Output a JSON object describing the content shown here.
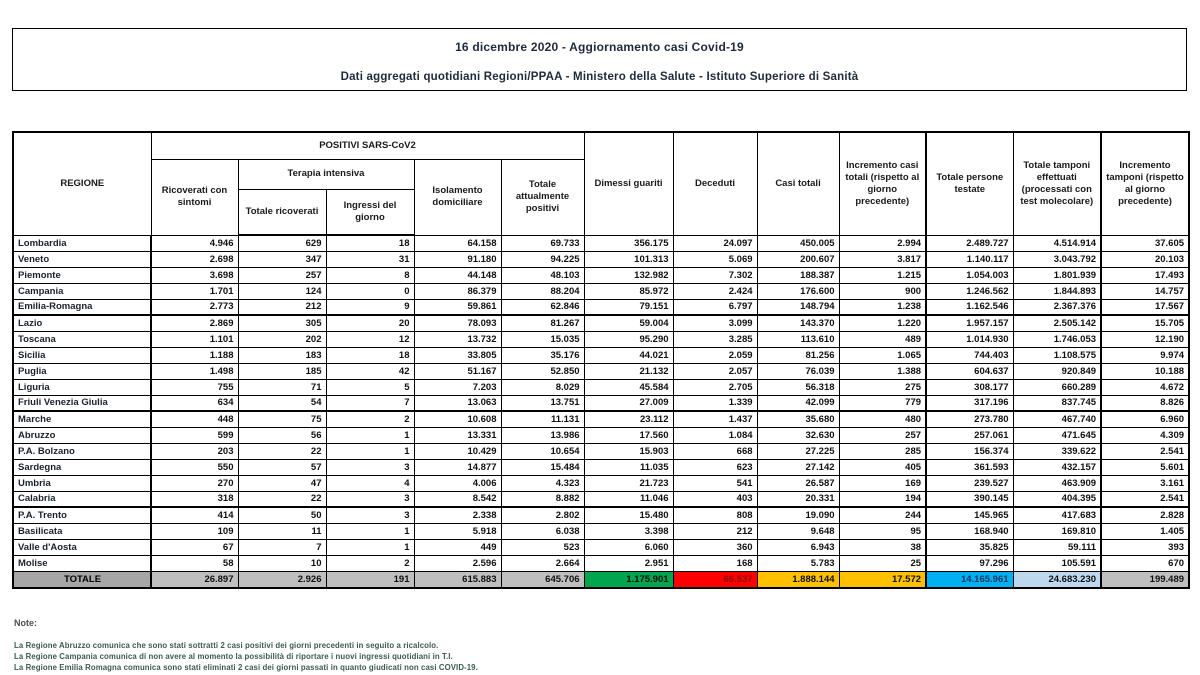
{
  "title": {
    "line1": "16 dicembre 2020 - Aggiornamento casi Covid-19",
    "line2": "Dati aggregati quotidiani Regioni/PPAA - Ministero della Salute - Istituto Superiore di Sanità"
  },
  "table": {
    "headers": {
      "regione": "REGIONE",
      "positivi": "POSITIVI SARS-CoV2",
      "terapia": "Terapia intensiva",
      "ricoverati": "Ricoverati con sintomi",
      "ti_totale": "Totale ricoverati",
      "ti_ingressi": "Ingressi del giorno",
      "isolamento": "Isolamento domiciliare",
      "attualmente": "Totale attualmente positivi",
      "dimessi": "Dimessi guariti",
      "deceduti": "Deceduti",
      "casi": "Casi totali",
      "incr_casi": "Incremento casi totali (rispetto al giorno precedente)",
      "testate": "Totale persone testate",
      "tamponi": "Totale tamponi effettuati (processati con test molecolare)",
      "incr_tamponi": "Incremento tamponi (rispetto al giorno precedente)"
    },
    "col_keys": [
      "ricoverati-con-sintomi",
      "ti-totale-ricoverati",
      "ti-ingressi-del-giorno",
      "isolamento-domiciliare",
      "totale-attualmente-positivi",
      "dimessi-guariti",
      "deceduti",
      "casi-totali",
      "incremento-casi-totali",
      "totale-persone-testate",
      "totale-tamponi-effettuati",
      "incremento-tamponi"
    ],
    "rows": [
      {
        "regione": "Lombardia",
        "values": [
          "4.946",
          "629",
          "18",
          "64.158",
          "69.733",
          "356.175",
          "24.097",
          "450.005",
          "2.994",
          "2.489.727",
          "4.514.914",
          "37.605"
        ]
      },
      {
        "regione": "Veneto",
        "values": [
          "2.698",
          "347",
          "31",
          "91.180",
          "94.225",
          "101.313",
          "5.069",
          "200.607",
          "3.817",
          "1.140.117",
          "3.043.792",
          "20.103"
        ]
      },
      {
        "regione": "Piemonte",
        "values": [
          "3.698",
          "257",
          "8",
          "44.148",
          "48.103",
          "132.982",
          "7.302",
          "188.387",
          "1.215",
          "1.054.003",
          "1.801.939",
          "17.493"
        ]
      },
      {
        "regione": "Campania",
        "values": [
          "1.701",
          "124",
          "0",
          "86.379",
          "88.204",
          "85.972",
          "2.424",
          "176.600",
          "900",
          "1.246.562",
          "1.844.893",
          "14.757"
        ]
      },
      {
        "regione": "Emilia-Romagna",
        "group_end": true,
        "values": [
          "2.773",
          "212",
          "9",
          "59.861",
          "62.846",
          "79.151",
          "6.797",
          "148.794",
          "1.238",
          "1.162.546",
          "2.367.376",
          "17.567"
        ]
      },
      {
        "regione": "Lazio",
        "values": [
          "2.869",
          "305",
          "20",
          "78.093",
          "81.267",
          "59.004",
          "3.099",
          "143.370",
          "1.220",
          "1.957.157",
          "2.505.142",
          "15.705"
        ]
      },
      {
        "regione": "Toscana",
        "values": [
          "1.101",
          "202",
          "12",
          "13.732",
          "15.035",
          "95.290",
          "3.285",
          "113.610",
          "489",
          "1.014.930",
          "1.746.053",
          "12.190"
        ]
      },
      {
        "regione": "Sicilia",
        "values": [
          "1.188",
          "183",
          "18",
          "33.805",
          "35.176",
          "44.021",
          "2.059",
          "81.256",
          "1.065",
          "744.403",
          "1.108.575",
          "9.974"
        ]
      },
      {
        "regione": "Puglia",
        "values": [
          "1.498",
          "185",
          "42",
          "51.167",
          "52.850",
          "21.132",
          "2.057",
          "76.039",
          "1.388",
          "604.637",
          "920.849",
          "10.188"
        ]
      },
      {
        "regione": "Liguria",
        "values": [
          "755",
          "71",
          "5",
          "7.203",
          "8.029",
          "45.584",
          "2.705",
          "56.318",
          "275",
          "308.177",
          "660.289",
          "4.672"
        ]
      },
      {
        "regione": "Friuli Venezia Giulia",
        "group_end": true,
        "values": [
          "634",
          "54",
          "7",
          "13.063",
          "13.751",
          "27.009",
          "1.339",
          "42.099",
          "779",
          "317.196",
          "837.745",
          "8.826"
        ]
      },
      {
        "regione": "Marche",
        "values": [
          "448",
          "75",
          "2",
          "10.608",
          "11.131",
          "23.112",
          "1.437",
          "35.680",
          "480",
          "273.780",
          "467.740",
          "6.960"
        ]
      },
      {
        "regione": "Abruzzo",
        "values": [
          "599",
          "56",
          "1",
          "13.331",
          "13.986",
          "17.560",
          "1.084",
          "32.630",
          "257",
          "257.061",
          "471.645",
          "4.309"
        ]
      },
      {
        "regione": "P.A. Bolzano",
        "values": [
          "203",
          "22",
          "1",
          "10.429",
          "10.654",
          "15.903",
          "668",
          "27.225",
          "285",
          "156.374",
          "339.622",
          "2.541"
        ]
      },
      {
        "regione": "Sardegna",
        "values": [
          "550",
          "57",
          "3",
          "14.877",
          "15.484",
          "11.035",
          "623",
          "27.142",
          "405",
          "361.593",
          "432.157",
          "5.601"
        ]
      },
      {
        "regione": "Umbria",
        "values": [
          "270",
          "47",
          "4",
          "4.006",
          "4.323",
          "21.723",
          "541",
          "26.587",
          "169",
          "239.527",
          "463.909",
          "3.161"
        ]
      },
      {
        "regione": "Calabria",
        "group_end": true,
        "values": [
          "318",
          "22",
          "3",
          "8.542",
          "8.882",
          "11.046",
          "403",
          "20.331",
          "194",
          "390.145",
          "404.395",
          "2.541"
        ]
      },
      {
        "regione": "P.A. Trento",
        "values": [
          "414",
          "50",
          "3",
          "2.338",
          "2.802",
          "15.480",
          "808",
          "19.090",
          "244",
          "145.965",
          "417.683",
          "2.828"
        ]
      },
      {
        "regione": "Basilicata",
        "values": [
          "109",
          "11",
          "1",
          "5.918",
          "6.038",
          "3.398",
          "212",
          "9.648",
          "95",
          "168.940",
          "169.810",
          "1.405"
        ]
      },
      {
        "regione": "Valle d'Aosta",
        "values": [
          "67",
          "7",
          "1",
          "449",
          "523",
          "6.060",
          "360",
          "6.943",
          "38",
          "35.825",
          "59.111",
          "393"
        ]
      },
      {
        "regione": "Molise",
        "values": [
          "58",
          "10",
          "2",
          "2.596",
          "2.664",
          "2.951",
          "168",
          "5.783",
          "25",
          "97.296",
          "105.591",
          "670"
        ]
      },
      {
        "regione": "TOTALE",
        "is_total": true,
        "values": [
          "26.897",
          "2.926",
          "191",
          "615.883",
          "645.706",
          "1.175.901",
          "66.537",
          "1.888.144",
          "17.572",
          "14.165.961",
          "24.683.230",
          "199.489"
        ]
      }
    ]
  },
  "notes": {
    "title": "Note:",
    "lines": [
      "La Regione Abruzzo comunica che sono stati sottratti 2 casi positivi dei giorni precedenti in seguito a ricalcolo.",
      "La Regione Campania comunica di non avere al momento la possibilità di riportare i nuovi ingressi quotidiani in T.I.",
      "La Regione Emilia Romagna comunica sono stati eliminati 2 casi dei giorni passati in quanto giudicati non casi COVID-19."
    ]
  },
  "colors": {
    "green": "#00a550",
    "red": "#fe0000",
    "yellow": "#ffc000",
    "cyan": "#00b0f0",
    "lavender": "#bdd7ee",
    "header_gray": "#a6a6a6",
    "total_gray": "#bfbfbf",
    "light_gray": "#d9d9d9"
  }
}
